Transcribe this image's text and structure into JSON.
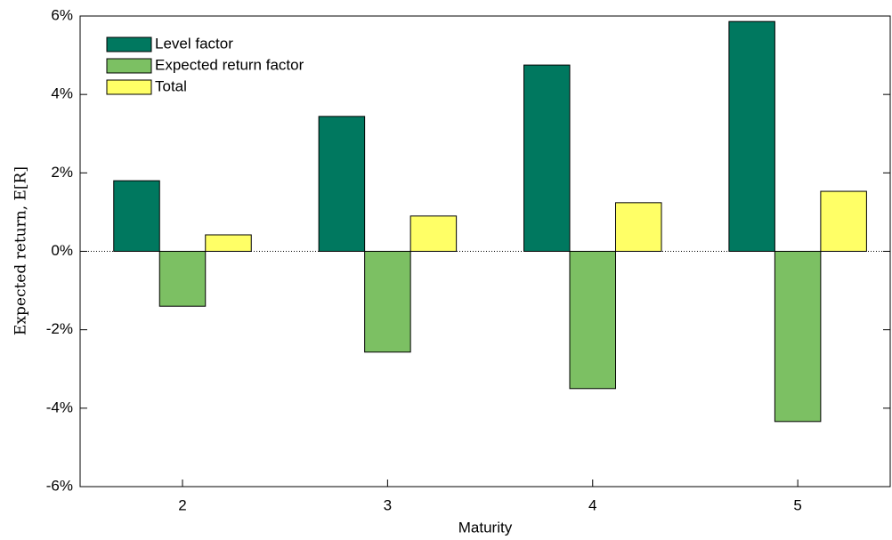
{
  "chart_data": {
    "type": "bar",
    "x_label": "Maturity",
    "y_label": "Expected return, E[R]",
    "categories": [
      "2",
      "3",
      "4",
      "5"
    ],
    "series": [
      {
        "name": "Level factor",
        "color": "#00785f",
        "values": [
          1.8,
          3.44,
          4.75,
          5.86
        ]
      },
      {
        "name": "Expected return factor",
        "color": "#7cc063",
        "values": [
          -1.4,
          -2.57,
          -3.5,
          -4.34
        ]
      },
      {
        "name": "Total",
        "color": "#ffff66",
        "values": [
          0.42,
          0.9,
          1.24,
          1.53
        ]
      }
    ],
    "ylim": [
      -6,
      6
    ],
    "yticks": [
      {
        "value": -6,
        "label": "-6%"
      },
      {
        "value": -4,
        "label": "-4%"
      },
      {
        "value": -2,
        "label": "-2%"
      },
      {
        "value": 0,
        "label": "0%"
      },
      {
        "value": 2,
        "label": "2%"
      },
      {
        "value": 4,
        "label": "4%"
      },
      {
        "value": 6,
        "label": "6%"
      }
    ],
    "legend": "upper-left",
    "grid": false
  }
}
